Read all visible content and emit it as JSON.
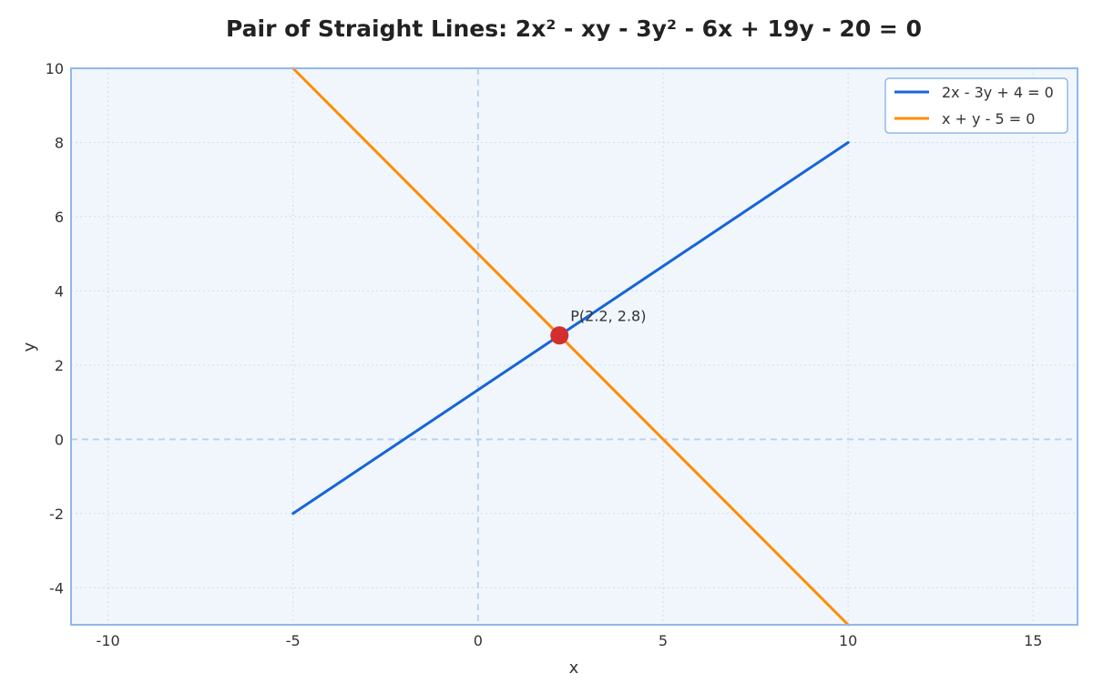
{
  "chart_data": {
    "type": "line",
    "title": "Pair of Straight Lines: 2x² - xy - 3y² - 6x + 19y - 20 = 0",
    "xlabel": "x",
    "ylabel": "y",
    "xlim": [
      -11,
      16.2
    ],
    "ylim": [
      -5,
      10
    ],
    "xticks": [
      -10,
      -5,
      0,
      5,
      10,
      15
    ],
    "xtick_labels": [
      "-10",
      "-5",
      "0",
      "5",
      "10",
      "15"
    ],
    "yticks": [
      -4,
      -2,
      0,
      2,
      4,
      6,
      8,
      10
    ],
    "ytick_labels": [
      "-4",
      "-2",
      "0",
      "2",
      "4",
      "6",
      "8",
      "10"
    ],
    "grid": true,
    "legend_position": "top-right",
    "series": [
      {
        "name": "2x - 3y + 4 = 0",
        "color": "#1565d8",
        "x": [
          -5,
          10
        ],
        "y": [
          -2,
          8
        ]
      },
      {
        "name": "x + y - 5 = 0",
        "color": "#ff8c00",
        "x": [
          -5,
          10
        ],
        "y": [
          10,
          -5
        ]
      }
    ],
    "point": {
      "label": "P(2.2, 2.8)",
      "x": 2.2,
      "y": 2.8,
      "color": "#d32f2f"
    },
    "colors": {
      "plot_background": "#f1f6fd",
      "frame": "#90b8ea",
      "grid": "#cfdcec",
      "zero_lines": "#bcd3f0"
    }
  }
}
